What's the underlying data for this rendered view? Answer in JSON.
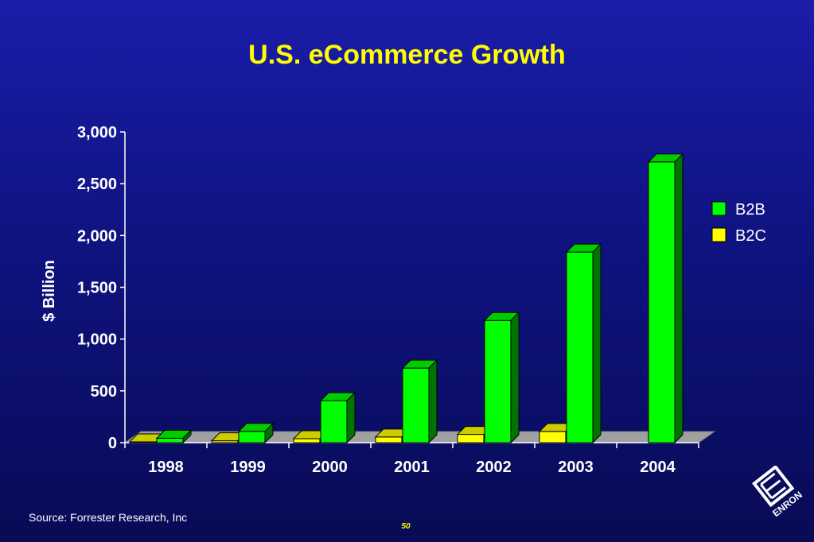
{
  "slide": {
    "title": "U.S. eCommerce Growth",
    "source": "Source:  Forrester Research, Inc",
    "page_number": "50",
    "logo_text": "ENRON"
  },
  "colors": {
    "b2b": "#00ff00",
    "b2c": "#ffff00",
    "title": "#ffff00",
    "text": "#ffffff"
  },
  "chart_data": {
    "type": "bar",
    "title": "U.S. eCommerce Growth",
    "ylabel": "$ Billion",
    "xlabel": "",
    "ylim": [
      0,
      3000
    ],
    "yticks": [
      0,
      500,
      1000,
      1500,
      2000,
      2500,
      3000
    ],
    "ytick_labels": [
      "0",
      "500",
      "1,000",
      "1,500",
      "2,000",
      "2,500",
      "3,000"
    ],
    "categories": [
      "1998",
      "1999",
      "2000",
      "2001",
      "2002",
      "2003",
      "2004"
    ],
    "series": [
      {
        "name": "B2B",
        "values": [
          43,
          109,
          406,
          720,
          1180,
          1840,
          2710
        ]
      },
      {
        "name": "B2C",
        "values": [
          8,
          18,
          38,
          55,
          80,
          108,
          0
        ]
      }
    ],
    "legend_position": "right",
    "grid": false
  }
}
